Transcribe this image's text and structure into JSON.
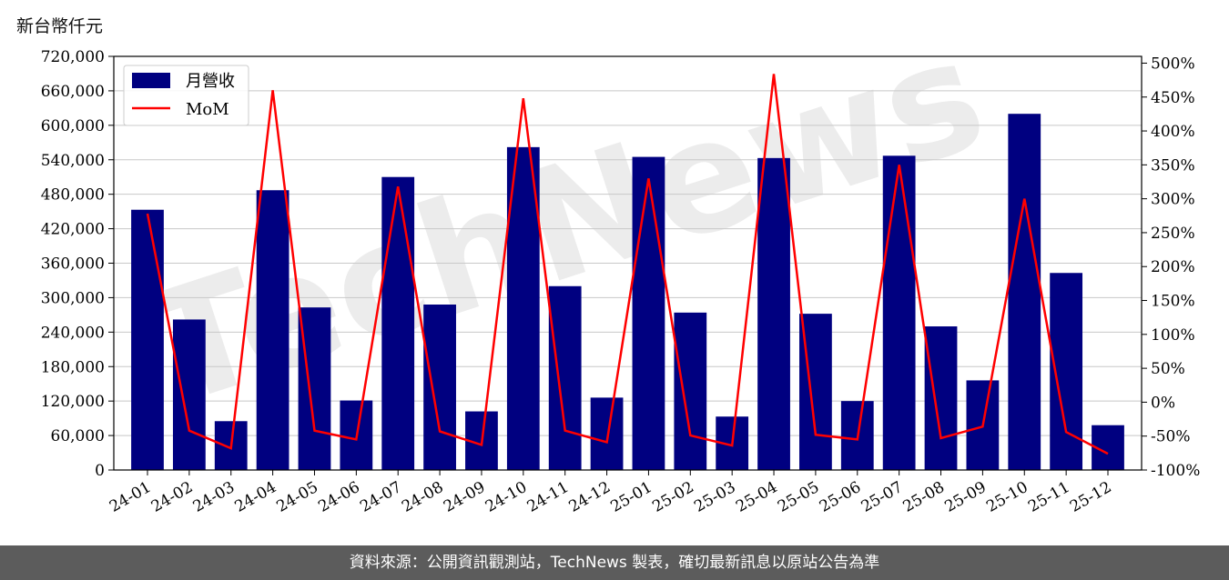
{
  "unit_label": "新台幣仟元",
  "footer_text": "資料來源：公開資訊觀測站，TechNews 製表，確切最新訊息以原站公告為準",
  "watermark_text": "TechNews",
  "colors": {
    "bar": "#000080",
    "line": "#ff0000",
    "footer_bg": "#5c5c5c"
  },
  "chart_data": {
    "type": "bar",
    "categories": [
      "24-01",
      "24-02",
      "24-03",
      "24-04",
      "24-05",
      "24-06",
      "24-07",
      "24-08",
      "24-09",
      "24-10",
      "24-11",
      "24-12",
      "25-01",
      "25-02",
      "25-03",
      "25-04",
      "25-05",
      "25-06",
      "25-07",
      "25-08",
      "25-09",
      "25-10",
      "25-11",
      "25-12"
    ],
    "series": [
      {
        "name": "月營收",
        "kind": "bar",
        "axis": "left",
        "values": [
          453000,
          262000,
          85000,
          487000,
          283000,
          121000,
          510000,
          288000,
          102000,
          562000,
          320000,
          126000,
          545000,
          274000,
          93000,
          543000,
          272000,
          120000,
          547000,
          250000,
          156000,
          620000,
          343000,
          78000
        ]
      },
      {
        "name": "MoM",
        "kind": "line",
        "axis": "right",
        "values": [
          278,
          -42,
          -68,
          460,
          -42,
          -55,
          318,
          -43,
          -63,
          448,
          -42,
          -59,
          330,
          -49,
          -64,
          484,
          -48,
          -55,
          350,
          -53,
          -36,
          300,
          -44,
          -76
        ]
      }
    ],
    "y_left": {
      "lim": [
        0,
        720000
      ],
      "ticks": [
        0,
        60000,
        120000,
        180000,
        240000,
        300000,
        360000,
        420000,
        480000,
        540000,
        600000,
        660000,
        720000
      ],
      "tick_labels": [
        "0",
        "60,000",
        "120,000",
        "180,000",
        "240,000",
        "300,000",
        "360,000",
        "420,000",
        "480,000",
        "540,000",
        "600,000",
        "660,000",
        "720,000"
      ]
    },
    "y_right": {
      "lim": [
        -100,
        510
      ],
      "ticks": [
        -100,
        -50,
        0,
        50,
        100,
        150,
        200,
        250,
        300,
        350,
        400,
        450,
        500
      ],
      "tick_labels": [
        "-100%",
        "-50%",
        "0%",
        "50%",
        "100%",
        "150%",
        "200%",
        "250%",
        "300%",
        "350%",
        "400%",
        "450%",
        "500%"
      ]
    },
    "legend": {
      "position": "top-left",
      "entries": [
        "月營收",
        "MoM"
      ]
    },
    "grid": "horizontal"
  }
}
